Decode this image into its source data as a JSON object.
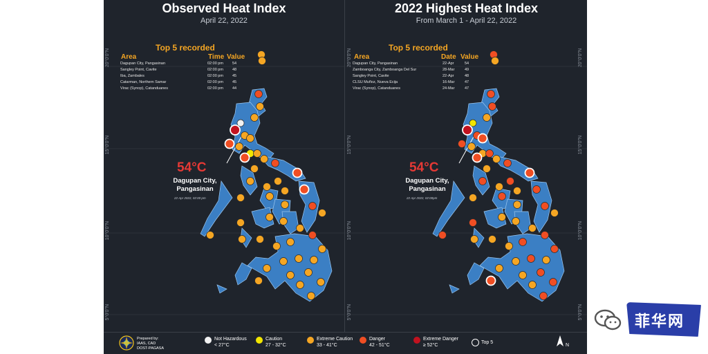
{
  "left_panel": {
    "title": "Observed Heat Index",
    "subtitle": "April 22, 2022",
    "top5_title": "Top 5 recorded",
    "columns": [
      "Area",
      "Time",
      "Value"
    ],
    "rows": [
      {
        "area": "Dagupan City, Pangasinan",
        "col2": "02:00 pm",
        "value": "54"
      },
      {
        "area": "Sangley Point, Cavite",
        "col2": "02:00 pm",
        "value": "48"
      },
      {
        "area": "Iba, Zambales",
        "col2": "02:00 pm",
        "value": "45"
      },
      {
        "area": "Catarman, Northern Samar",
        "col2": "02:00 pm",
        "value": "45"
      },
      {
        "area": "Virac (Synop), Catanduanes",
        "col2": "02:00 pm",
        "value": "44"
      }
    ],
    "callout_temp": "54°C",
    "callout_city": "Dagupan City,",
    "callout_prov": "Pangasinan",
    "callout_date": "22 Apr 2022, 02:00 pm"
  },
  "right_panel": {
    "title": "2022 Highest Heat Index",
    "subtitle": "From March 1 - April 22, 2022",
    "top5_title": "Top 5 recorded",
    "columns": [
      "Area",
      "Date",
      "Value"
    ],
    "rows": [
      {
        "area": "Dagupan City, Pangasinan",
        "col2": "22-Apr",
        "value": "54"
      },
      {
        "area": "Zamboanga City, Zamboanga Del Sur",
        "col2": "28-Mar",
        "value": "49"
      },
      {
        "area": "Sangley Point, Cavite",
        "col2": "22-Apr",
        "value": "48"
      },
      {
        "area": "CLSU Muñoz, Nueva Ecija",
        "col2": "16-Mar",
        "value": "47"
      },
      {
        "area": "Virac (Synop), Catanduanes",
        "col2": "24-Mar",
        "value": "47"
      }
    ],
    "callout_temp": "54°C",
    "callout_city": "Dagupan City,",
    "callout_prov": "Pangasinan",
    "callout_date": "22 Apr 2022, 02:00pm"
  },
  "coords": [
    "20°0'0\"N",
    "15°0'0\"N",
    "10°0'0\"N",
    "5°0'0\"N"
  ],
  "legend": {
    "prepared": [
      "Prepared by:",
      "IAAS, CAD",
      "DOST-PAGASA"
    ],
    "items": [
      {
        "label": "Not Hazardous",
        "range": "< 27°C",
        "color": "#f2f2f2"
      },
      {
        "label": "Caution",
        "range": "27 - 32°C",
        "color": "#f2e600"
      },
      {
        "label": "Extreme Caution",
        "range": "33 - 41°C",
        "color": "#f5a623"
      },
      {
        "label": "Danger",
        "range": "42 - 51°C",
        "color": "#f04e23"
      },
      {
        "label": "Extreme Danger",
        "range": "≥ 52°C",
        "color": "#c1121f"
      },
      {
        "label": "Top 5",
        "range": "",
        "color": "none"
      }
    ],
    "north": "N"
  },
  "watermark": {
    "text": "菲华网"
  },
  "colors": {
    "land": "#3b7fc4",
    "background": "#1f242c",
    "accent": "#f5a623",
    "danger": "#e53935"
  }
}
